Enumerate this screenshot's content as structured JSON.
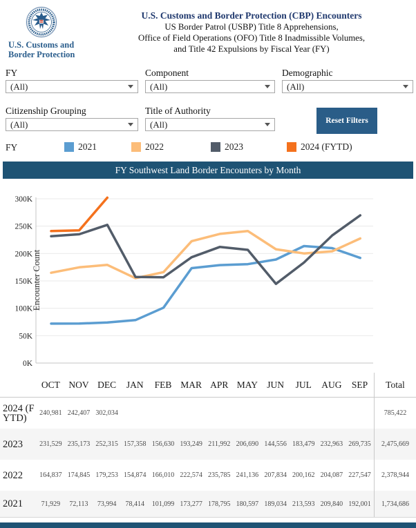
{
  "header": {
    "title": "U.S. Customs and Border Protection (CBP) Encounters",
    "subtitle_lines": [
      "US Border Patrol (USBP) Title 8 Apprehensions,",
      "Office of Field Operations (OFO) Title 8 Inadmissible Volumes,",
      "and Title 42 Expulsions by Fiscal Year (FY)"
    ],
    "logo_caption_line1": "U.S. Customs and",
    "logo_caption_line2": "Border Protection"
  },
  "filters": [
    {
      "label": "FY",
      "value": "(All)"
    },
    {
      "label": "Component",
      "value": "(All)"
    },
    {
      "label": "Demographic",
      "value": "(All)"
    },
    {
      "label": "Citizenship Grouping",
      "value": "(All)"
    },
    {
      "label": "Title of Authority",
      "value": "(All)"
    }
  ],
  "reset_button_label": "Reset Filters",
  "legend": {
    "label": "FY",
    "items": [
      {
        "label": "2021",
        "color": "#5b9dd1"
      },
      {
        "label": "2022",
        "color": "#fcbd79"
      },
      {
        "label": "2023",
        "color": "#525c69"
      },
      {
        "label": "2024 (FYTD)",
        "color": "#f4711d"
      }
    ]
  },
  "banner_title": "FY Southwest Land Border Encounters by Month",
  "chart_data": {
    "type": "line",
    "title": "FY Southwest Land Border Encounters by Month",
    "xlabel": "",
    "ylabel": "Encounter Count",
    "categories": [
      "OCT",
      "NOV",
      "DEC",
      "JAN",
      "FEB",
      "MAR",
      "APR",
      "MAY",
      "JUN",
      "JUL",
      "AUG",
      "SEP"
    ],
    "ylim": [
      0,
      300000
    ],
    "yticks": [
      0,
      50000,
      100000,
      150000,
      200000,
      250000,
      300000
    ],
    "ytick_labels": [
      "0K",
      "50K",
      "100K",
      "150K",
      "200K",
      "250K",
      "300K"
    ],
    "grid": true,
    "legend_position": "top",
    "series": [
      {
        "name": "2021",
        "color": "#5b9dd1",
        "values": [
          71929,
          72113,
          73994,
          78414,
          101099,
          173277,
          178795,
          180597,
          189034,
          213593,
          209840,
          192001
        ]
      },
      {
        "name": "2022",
        "color": "#fcbd79",
        "values": [
          164837,
          174845,
          179253,
          154874,
          166010,
          222574,
          235785,
          241136,
          207834,
          200162,
          204087,
          227547
        ]
      },
      {
        "name": "2023",
        "color": "#525c69",
        "values": [
          231529,
          235173,
          252315,
          157358,
          156630,
          193249,
          211992,
          206690,
          144556,
          183479,
          232963,
          269735
        ]
      },
      {
        "name": "2024 (FYTD)",
        "color": "#f4711d",
        "values": [
          240981,
          242407,
          302034,
          null,
          null,
          null,
          null,
          null,
          null,
          null,
          null,
          null
        ]
      }
    ]
  },
  "table": {
    "columns": [
      "OCT",
      "NOV",
      "DEC",
      "JAN",
      "FEB",
      "MAR",
      "APR",
      "MAY",
      "JUN",
      "JUL",
      "AUG",
      "SEP"
    ],
    "total_label": "Total",
    "rows": [
      {
        "label": "2024 (FYTD)",
        "cells": [
          "240,981",
          "242,407",
          "302,034",
          "",
          "",
          "",
          "",
          "",
          "",
          "",
          "",
          ""
        ],
        "total": "785,422"
      },
      {
        "label": "2023",
        "cells": [
          "231,529",
          "235,173",
          "252,315",
          "157,358",
          "156,630",
          "193,249",
          "211,992",
          "206,690",
          "144,556",
          "183,479",
          "232,963",
          "269,735"
        ],
        "total": "2,475,669"
      },
      {
        "label": "2022",
        "cells": [
          "164,837",
          "174,845",
          "179,253",
          "154,874",
          "166,010",
          "222,574",
          "235,785",
          "241,136",
          "207,834",
          "200,162",
          "204,087",
          "227,547"
        ],
        "total": "2,378,944"
      },
      {
        "label": "2021",
        "cells": [
          "71,929",
          "72,113",
          "73,994",
          "78,414",
          "101,099",
          "173,277",
          "178,795",
          "180,597",
          "189,034",
          "213,593",
          "209,840",
          "192,001"
        ],
        "total": "1,734,686"
      }
    ]
  },
  "colors": {
    "title_navy": "#20396e",
    "logo_blue": "#2a5d8c",
    "banner_navy": "#1e5374",
    "button_navy": "#2a5d88",
    "grid_line": "#e9e9e9",
    "axis_line": "#c4c4c4",
    "row_alt": "#f5f5f5"
  }
}
